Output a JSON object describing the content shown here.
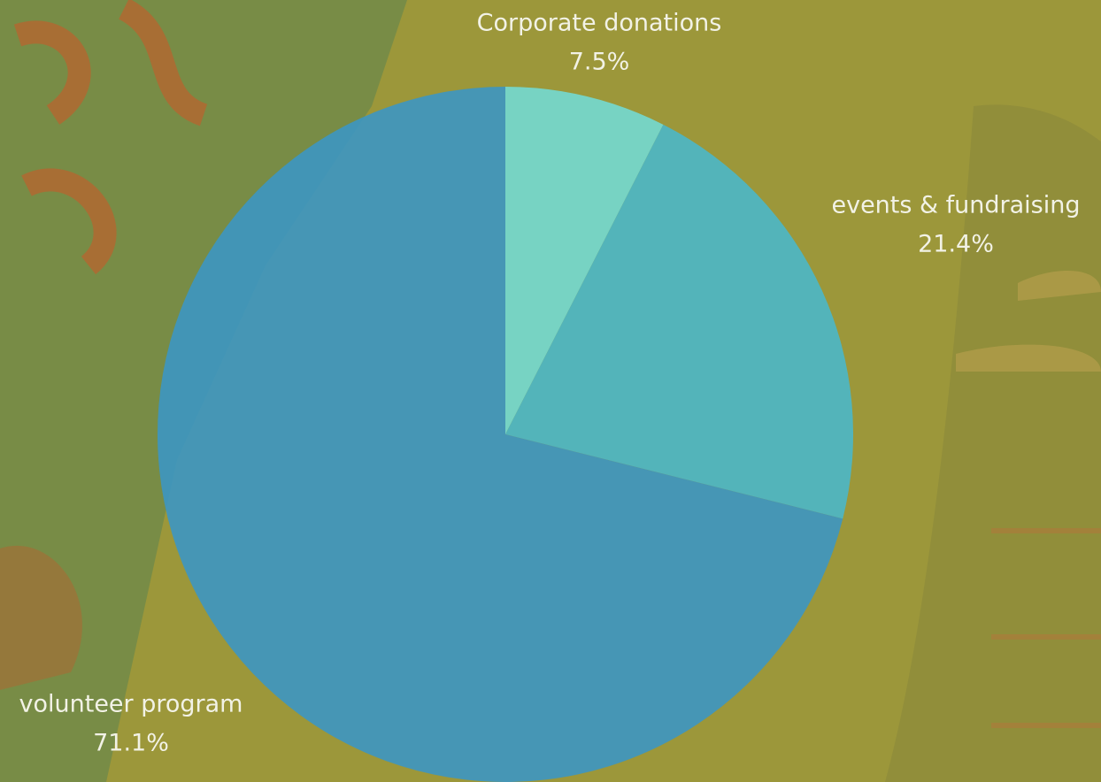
{
  "chart_data": {
    "type": "pie",
    "categories": [
      "Corporate donations",
      "events & fundraising",
      "volunteer program"
    ],
    "values": [
      7.5,
      21.4,
      71.1
    ],
    "value_labels": [
      "7.5%",
      "21.4%",
      "71.1%"
    ],
    "colors": [
      "#72dcd6",
      "#49b8cc",
      "#3a96c6"
    ]
  }
}
